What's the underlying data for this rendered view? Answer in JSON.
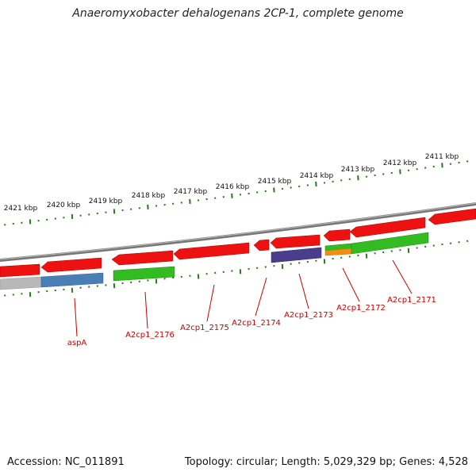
{
  "title": "Anaeromyxobacter dehalogenans 2CP-1, complete genome",
  "footer": {
    "accession": "Accession: NC_011891",
    "summary": "Topology: circular; Length: 5,029,329 bp; Genes: 4,528"
  },
  "colors": {
    "cds": "#ee1111",
    "cds_dark": "#b00000",
    "backbone": "#777777",
    "tick": "#2a7a1a",
    "label": "#cc0000",
    "green": "#33bb22",
    "blue": "#4a7fb5",
    "purple": "#4a3e8c",
    "orange": "#f09010",
    "gray": "#b8b8b8"
  },
  "kbp_labels": [
    "2421 kbp",
    "2420 kbp",
    "2419 kbp",
    "2418 kbp",
    "2417 kbp",
    "2416 kbp",
    "2415 kbp",
    "2414 kbp",
    "2413 kbp",
    "2412 kbp",
    "2411 kbp"
  ],
  "gene_labels": [
    "aspA",
    "A2cp1_2176",
    "A2cp1_2175",
    "A2cp1_2174",
    "A2cp1_2173",
    "A2cp1_2172",
    "A2cp1_2171"
  ]
}
